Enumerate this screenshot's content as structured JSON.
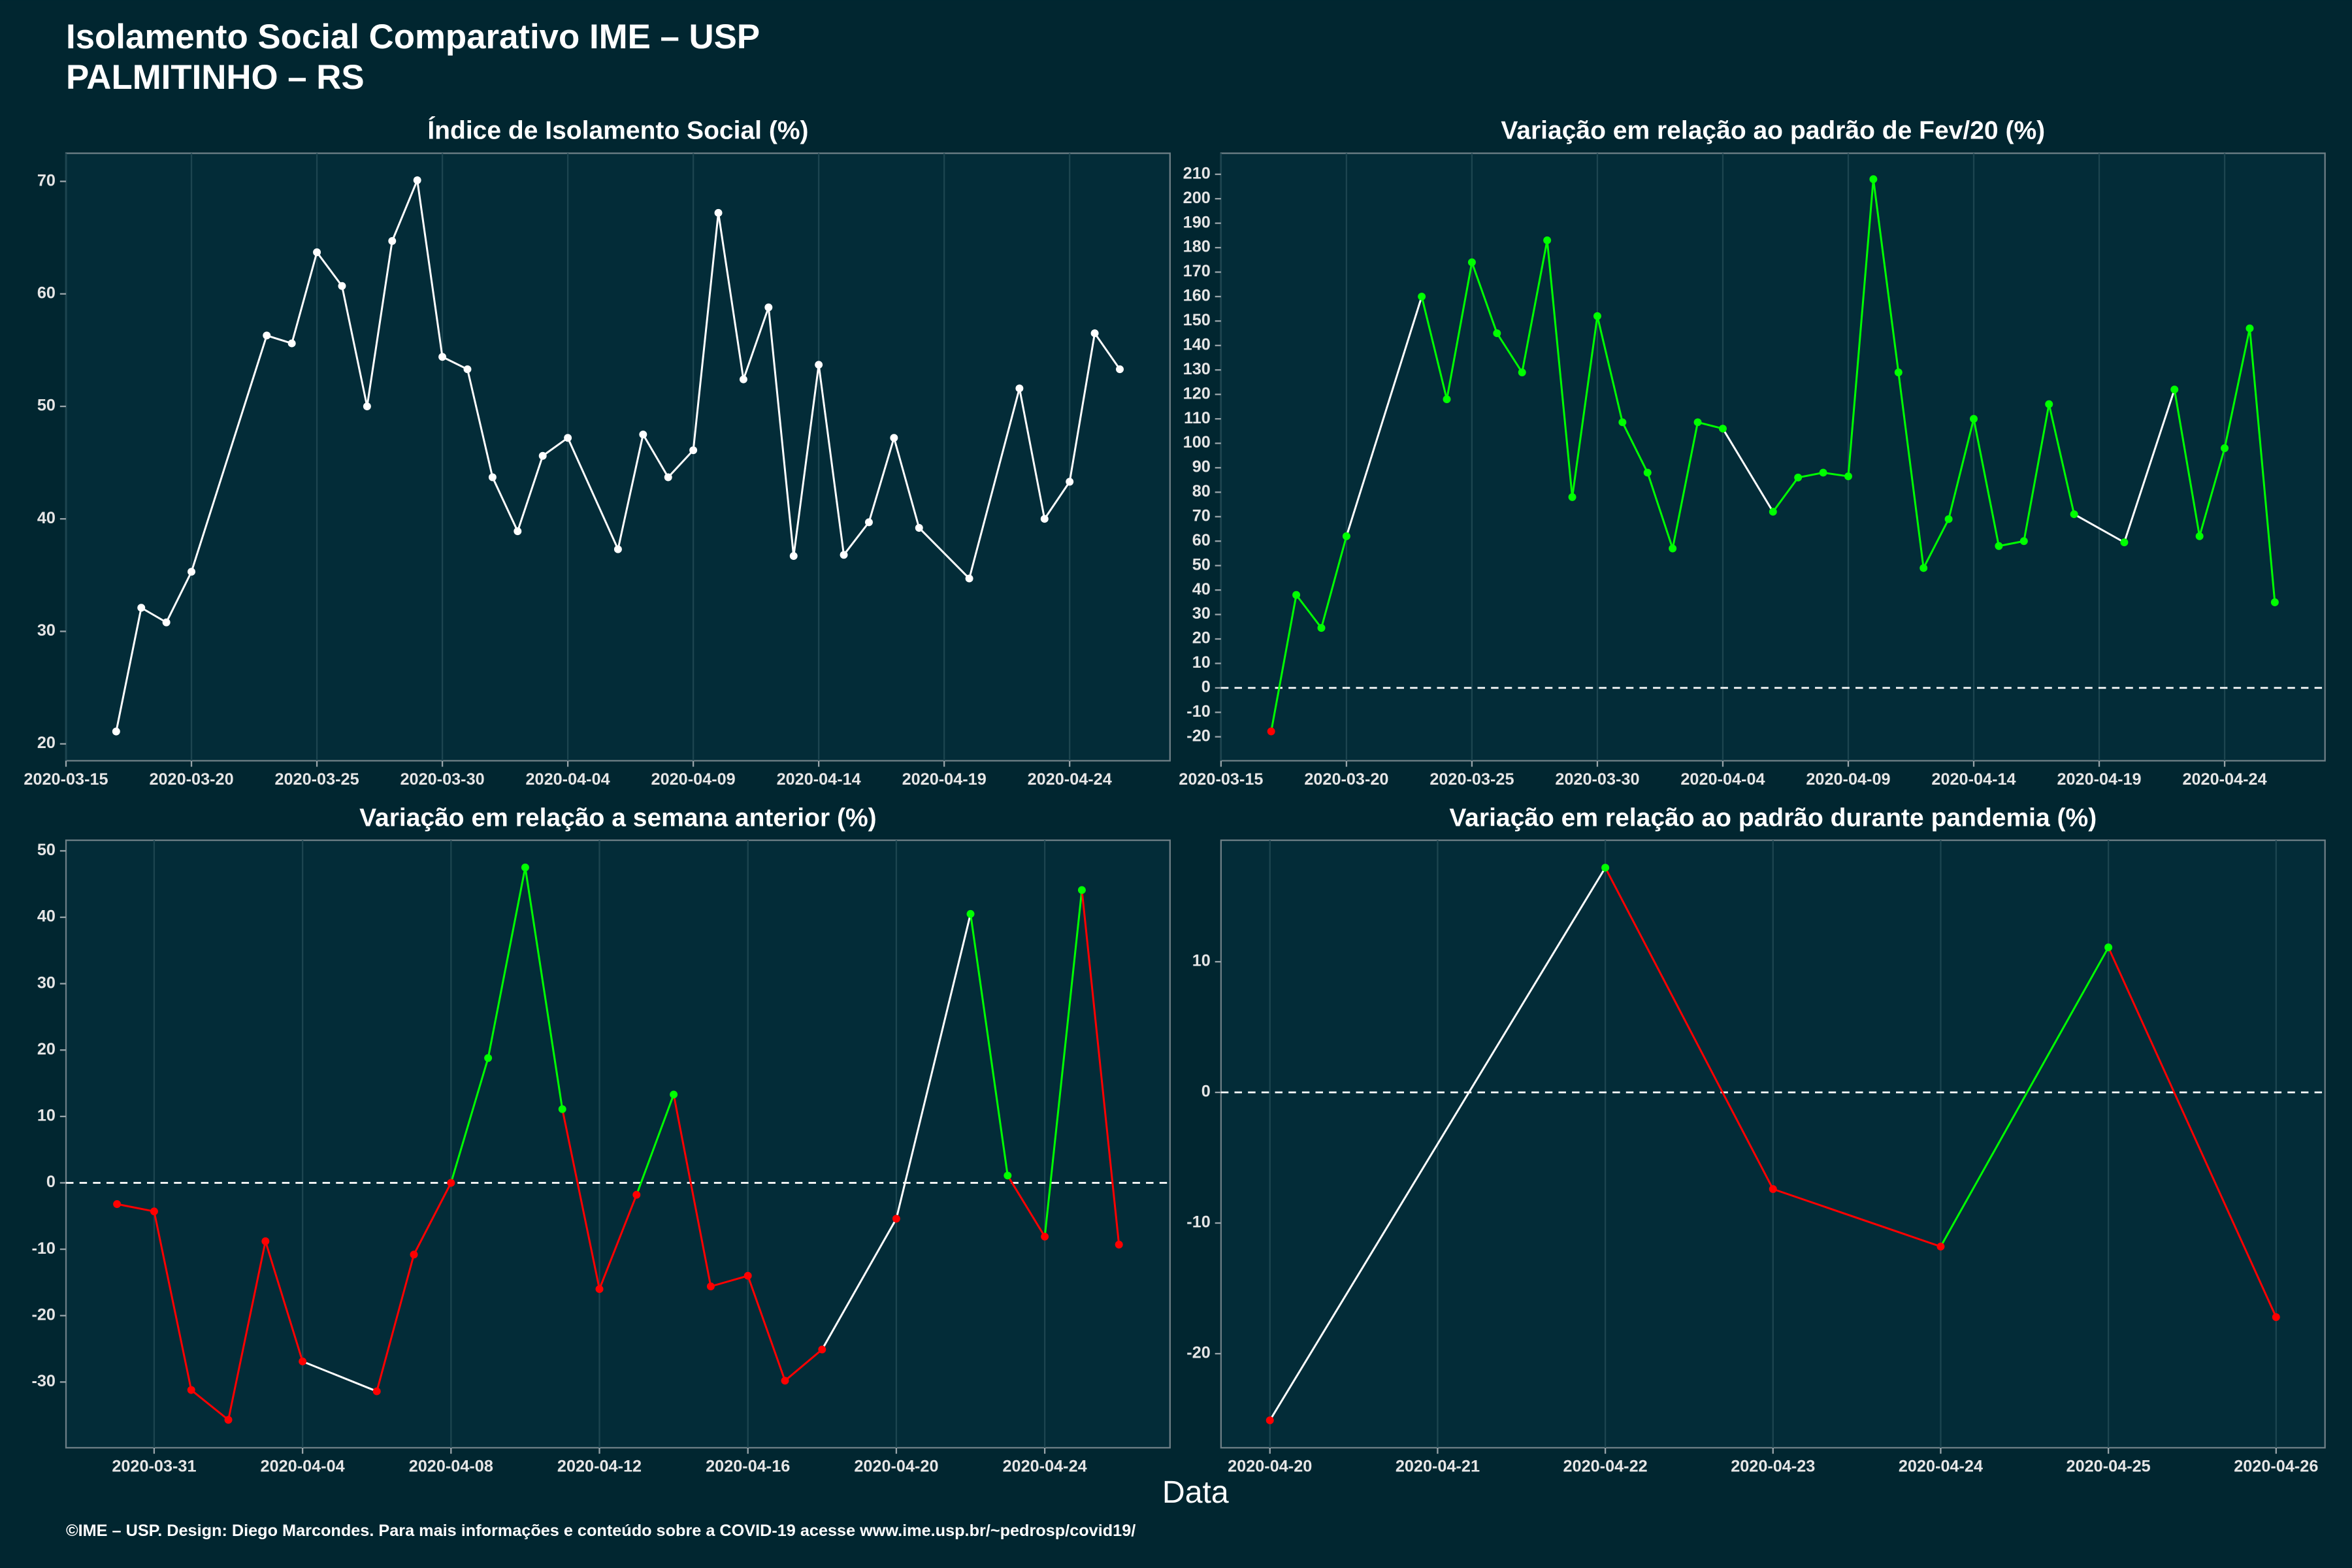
{
  "title": "Isolamento Social Comparativo IME – USP",
  "subtitle": "PALMITINHO – RS",
  "x_label": "Data",
  "caption": "©IME – USP. Design: Diego Marcondes. Para mais informações e conteúdo sobre a COVID-19 acesse www.ime.usp.br/~pedrosp/covid19/",
  "chart_data": [
    {
      "type": "line",
      "title": "Índice de Isolamento Social (%)",
      "color": "#ffffff",
      "grid": true,
      "x": [
        "2020-03-17",
        "2020-03-18",
        "2020-03-19",
        "2020-03-20",
        "2020-03-23",
        "2020-03-24",
        "2020-03-25",
        "2020-03-26",
        "2020-03-27",
        "2020-03-28",
        "2020-03-29",
        "2020-03-30",
        "2020-03-31",
        "2020-04-01",
        "2020-04-02",
        "2020-04-03",
        "2020-04-04",
        "2020-04-06",
        "2020-04-07",
        "2020-04-08",
        "2020-04-09",
        "2020-04-10",
        "2020-04-11",
        "2020-04-12",
        "2020-04-13",
        "2020-04-14",
        "2020-04-15",
        "2020-04-16",
        "2020-04-17",
        "2020-04-18",
        "2020-04-20",
        "2020-04-22",
        "2020-04-23",
        "2020-04-24",
        "2020-04-25",
        "2020-04-26"
      ],
      "values": [
        21.1,
        32.1,
        30.8,
        35.3,
        56.3,
        55.6,
        63.7,
        60.7,
        50,
        64.7,
        70.1,
        54.4,
        53.3,
        43.7,
        38.9,
        45.6,
        47.2,
        37.3,
        47.5,
        43.7,
        46.1,
        67.2,
        52.4,
        58.8,
        36.7,
        53.7,
        36.8,
        39.7,
        47.2,
        39.2,
        34.7,
        51.6,
        40,
        43.3,
        56.5,
        53.3
      ],
      "xlim": [
        "2020-03-15",
        "2020-04-28"
      ],
      "ylim": [
        18.5,
        72.5
      ],
      "xticks": [
        "2020-03-15",
        "2020-03-20",
        "2020-03-25",
        "2020-03-30",
        "2020-04-04",
        "2020-04-09",
        "2020-04-14",
        "2020-04-19",
        "2020-04-24"
      ],
      "yticks": [
        20,
        30,
        40,
        50,
        60,
        70
      ]
    },
    {
      "type": "line",
      "title": "Variação em relação ao padrão de Fev/20 (%)",
      "colors": {
        "positive": "#00ff00",
        "negative": "#ff0000",
        "gap": "#ffffff"
      },
      "grid": true,
      "hline": 0,
      "x": [
        "2020-03-17",
        "2020-03-18",
        "2020-03-19",
        "2020-03-20",
        "2020-03-23",
        "2020-03-24",
        "2020-03-25",
        "2020-03-26",
        "2020-03-27",
        "2020-03-28",
        "2020-03-29",
        "2020-03-30",
        "2020-03-31",
        "2020-04-01",
        "2020-04-02",
        "2020-04-03",
        "2020-04-04",
        "2020-04-06",
        "2020-04-07",
        "2020-04-08",
        "2020-04-09",
        "2020-04-10",
        "2020-04-11",
        "2020-04-12",
        "2020-04-13",
        "2020-04-14",
        "2020-04-15",
        "2020-04-16",
        "2020-04-17",
        "2020-04-18",
        "2020-04-20",
        "2020-04-22",
        "2020-04-23",
        "2020-04-24",
        "2020-04-25",
        "2020-04-26"
      ],
      "values": [
        -17.8,
        38,
        24.5,
        62,
        160,
        118,
        174,
        145,
        129,
        183,
        78,
        152,
        108.6,
        88,
        57,
        108.6,
        106,
        72,
        86,
        88,
        86.5,
        208,
        129,
        49,
        69,
        110,
        58,
        60,
        116,
        71,
        59.5,
        122,
        62,
        98,
        147,
        35
      ],
      "xlim": [
        "2020-03-15",
        "2020-04-28"
      ],
      "ylim": [
        -29.8,
        218.6
      ],
      "xticks": [
        "2020-03-15",
        "2020-03-20",
        "2020-03-25",
        "2020-03-30",
        "2020-04-04",
        "2020-04-09",
        "2020-04-14",
        "2020-04-19",
        "2020-04-24"
      ],
      "yticks": [
        -20,
        -10,
        0,
        10,
        20,
        30,
        40,
        50,
        60,
        70,
        80,
        90,
        100,
        110,
        120,
        130,
        140,
        150,
        160,
        170,
        180,
        190,
        200,
        210
      ]
    },
    {
      "type": "line",
      "title": "Variação em relação a semana anterior (%)",
      "colors": {
        "positive": "#00ff00",
        "negative": "#ff0000",
        "gap": "#ffffff"
      },
      "grid": true,
      "hline": 0,
      "x": [
        "2020-03-30",
        "2020-03-31",
        "2020-04-01",
        "2020-04-02",
        "2020-04-03",
        "2020-04-04",
        "2020-04-06",
        "2020-04-07",
        "2020-04-08",
        "2020-04-09",
        "2020-04-10",
        "2020-04-11",
        "2020-04-12",
        "2020-04-13",
        "2020-04-14",
        "2020-04-15",
        "2020-04-16",
        "2020-04-17",
        "2020-04-18",
        "2020-04-20",
        "2020-04-22",
        "2020-04-23",
        "2020-04-24",
        "2020-04-25",
        "2020-04-26"
      ],
      "values": [
        -3.2,
        -4.3,
        -31.2,
        -35.7,
        -8.8,
        -26.9,
        -31.4,
        -10.8,
        0,
        18.8,
        47.5,
        11.1,
        -16,
        -1.8,
        13.3,
        -15.6,
        -14,
        -29.8,
        -25.1,
        -5.4,
        40.5,
        1.1,
        -8.1,
        44.1,
        -9.3
      ],
      "xlim": [
        "2020-03-28T15:00Z",
        "2020-04-27T09:00Z"
      ],
      "ylim": [
        -39.9,
        51.6
      ],
      "xticks": [
        "2020-03-31",
        "2020-04-04",
        "2020-04-08",
        "2020-04-12",
        "2020-04-16",
        "2020-04-20",
        "2020-04-24"
      ],
      "yticks": [
        -30,
        -20,
        -10,
        0,
        10,
        20,
        30,
        40,
        50
      ]
    },
    {
      "type": "line",
      "title": "Variação em relação ao padrão durante pandemia (%)",
      "colors": {
        "positive": "#00ff00",
        "negative": "#ff0000",
        "gap": "#ffffff"
      },
      "grid": true,
      "hline": 0,
      "x": [
        "2020-04-20",
        "2020-04-22",
        "2020-04-23",
        "2020-04-24",
        "2020-04-25",
        "2020-04-26"
      ],
      "values": [
        -25.1,
        17.2,
        -7.4,
        -11.8,
        11.1,
        -17.2
      ],
      "xlim": [
        "2020-04-19T17:00Z",
        "2020-04-26T07:00Z"
      ],
      "ylim": [
        -27.2,
        19.3
      ],
      "xticks": [
        "2020-04-20",
        "2020-04-21",
        "2020-04-22",
        "2020-04-23",
        "2020-04-24",
        "2020-04-25",
        "2020-04-26"
      ],
      "yticks": [
        -20,
        -10,
        0,
        10
      ]
    }
  ]
}
